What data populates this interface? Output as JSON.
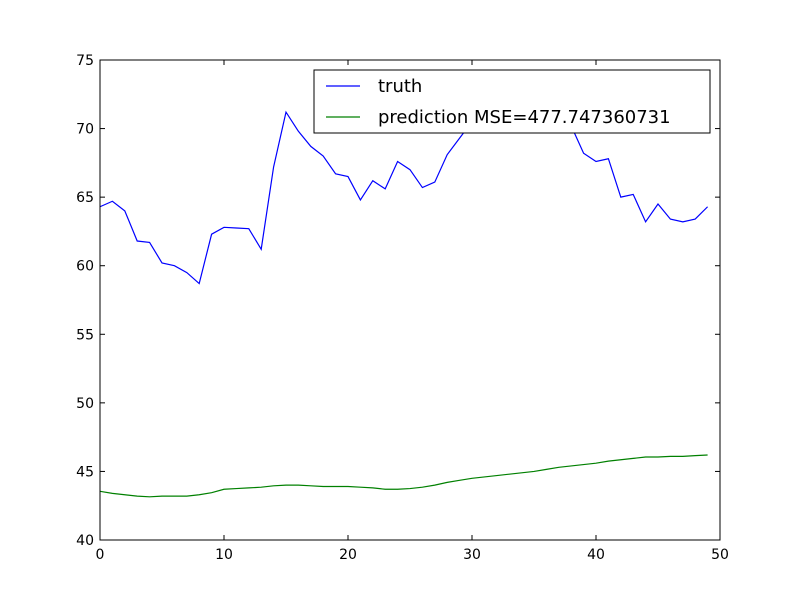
{
  "chart_data": {
    "type": "line",
    "title": "",
    "xlabel": "",
    "ylabel": "",
    "xlim": [
      0,
      50
    ],
    "ylim": [
      40,
      75
    ],
    "xticks": [
      0,
      10,
      20,
      30,
      40,
      50
    ],
    "yticks": [
      40,
      45,
      50,
      55,
      60,
      65,
      70,
      75
    ],
    "grid": false,
    "legend_placement": "top-right",
    "series": [
      {
        "name": "truth",
        "color": "#0000ff",
        "x": [
          0,
          1,
          2,
          3,
          4,
          5,
          6,
          7,
          8,
          9,
          10,
          11,
          12,
          13,
          14,
          15,
          16,
          17,
          18,
          19,
          20,
          21,
          22,
          23,
          24,
          25,
          26,
          27,
          28,
          29,
          30,
          31,
          32,
          33,
          34,
          35,
          36,
          37,
          38,
          39,
          40,
          41,
          42,
          43,
          44,
          45,
          46,
          47,
          48,
          49
        ],
        "values": [
          64.3,
          64.7,
          64.0,
          61.8,
          61.7,
          60.2,
          60.0,
          59.5,
          58.7,
          62.3,
          62.8,
          62.75,
          62.7,
          61.2,
          67.2,
          71.2,
          69.8,
          68.7,
          68.0,
          66.7,
          66.5,
          64.8,
          66.2,
          65.6,
          67.6,
          67.0,
          65.7,
          66.1,
          68.1,
          69.3,
          70.5,
          71.2,
          71.6,
          71.8,
          72.0,
          72.3,
          72.8,
          71.8,
          70.2,
          68.2,
          67.6,
          67.8,
          65.0,
          65.2,
          63.2,
          64.5,
          63.4,
          63.2,
          63.4,
          64.3
        ]
      },
      {
        "name": "prediction MSE=477.747360731",
        "color": "#008000",
        "x": [
          0,
          1,
          2,
          3,
          4,
          5,
          6,
          7,
          8,
          9,
          10,
          11,
          12,
          13,
          14,
          15,
          16,
          17,
          18,
          19,
          20,
          21,
          22,
          23,
          24,
          25,
          26,
          27,
          28,
          29,
          30,
          31,
          32,
          33,
          34,
          35,
          36,
          37,
          38,
          39,
          40,
          41,
          42,
          43,
          44,
          45,
          46,
          47,
          48,
          49
        ],
        "values": [
          43.55,
          43.4,
          43.3,
          43.2,
          43.15,
          43.2,
          43.2,
          43.2,
          43.3,
          43.45,
          43.7,
          43.75,
          43.8,
          43.85,
          43.95,
          44.0,
          44.0,
          43.95,
          43.9,
          43.9,
          43.9,
          43.85,
          43.8,
          43.7,
          43.7,
          43.75,
          43.85,
          44.0,
          44.2,
          44.35,
          44.5,
          44.6,
          44.7,
          44.8,
          44.9,
          45.0,
          45.15,
          45.3,
          45.4,
          45.5,
          45.6,
          45.75,
          45.85,
          45.95,
          46.05,
          46.05,
          46.1,
          46.1,
          46.15,
          46.2
        ]
      }
    ]
  }
}
